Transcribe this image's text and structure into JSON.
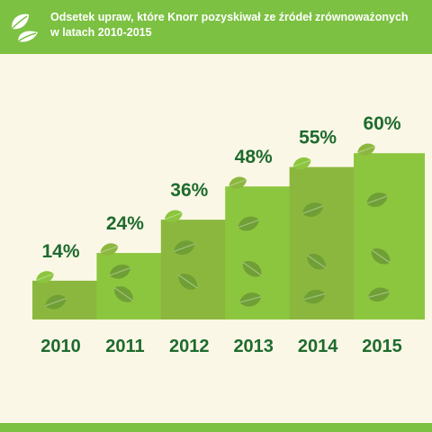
{
  "header": {
    "title": "Odsetek upraw, które Knorr pozyskiwał ze źródeł zrównoważonych w latach 2010-2015",
    "logo_icon": "leaf-pair-icon"
  },
  "colors": {
    "header_bg": "#7cc142",
    "page_bg": "#fbf7e6",
    "label_text": "#1e6b2e",
    "bar_fills": [
      "#8cb73f",
      "#8cc63f",
      "#8cb73f",
      "#8cc63f",
      "#8cb73f",
      "#8cc63f"
    ],
    "leaf_overlay": "#6f9f35"
  },
  "chart_data": {
    "type": "bar",
    "categories": [
      "2010",
      "2011",
      "2012",
      "2013",
      "2014",
      "2015"
    ],
    "values": [
      14,
      24,
      36,
      48,
      55,
      60
    ],
    "value_labels": [
      "14%",
      "24%",
      "36%",
      "48%",
      "55%",
      "60%"
    ],
    "title": "Odsetek upraw, które Knorr pozyskiwał ze źródeł zrównoważonych w latach 2010-2015",
    "xlabel": "",
    "ylabel": "",
    "ylim": [
      0,
      100
    ],
    "grid": false,
    "legend": "none"
  }
}
